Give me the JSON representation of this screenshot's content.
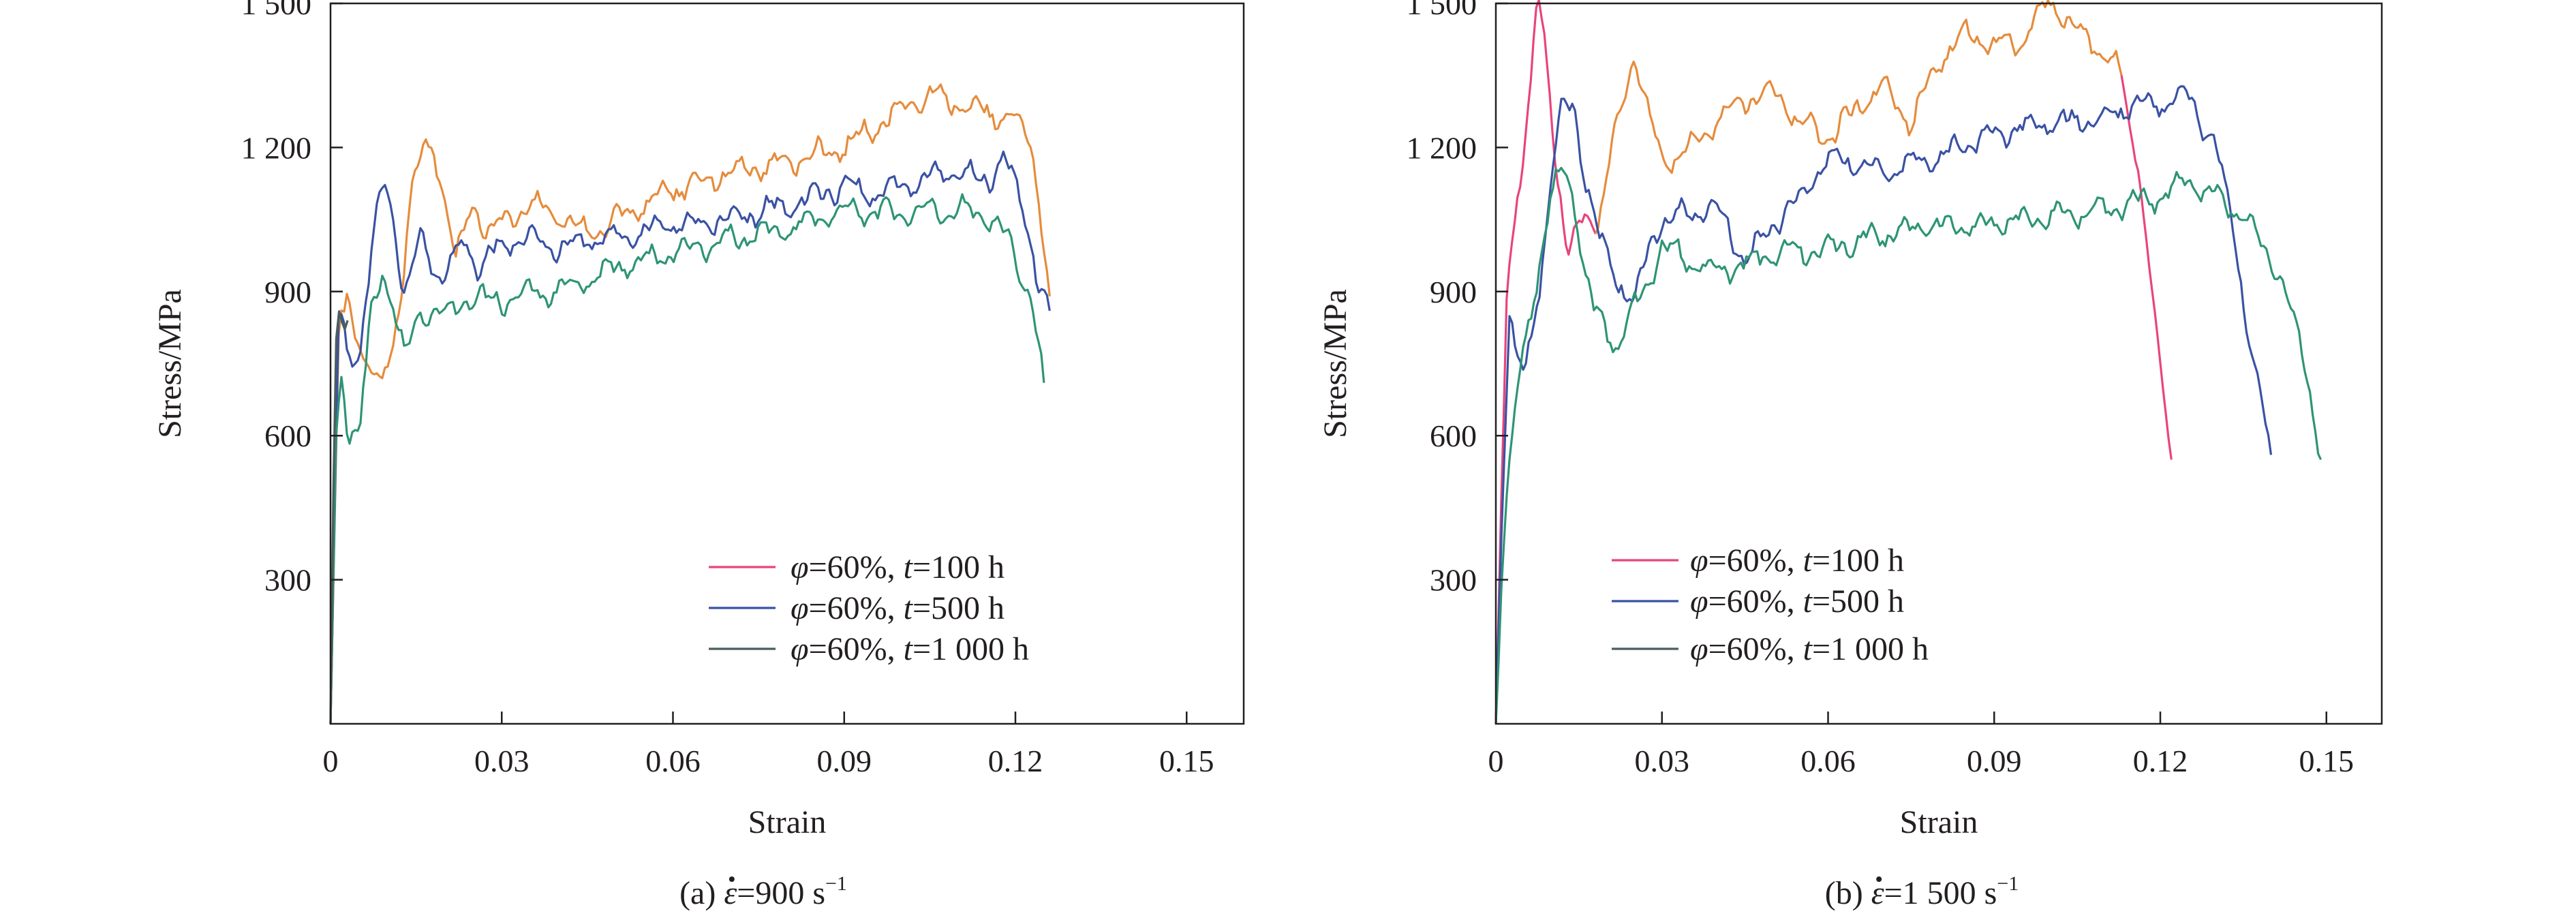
{
  "chart_data": [
    {
      "type": "line",
      "panel": "a",
      "caption": {
        "prefix": "(a) ",
        "symbol": "ε",
        "rest": "=900 s",
        "sup": "−1"
      },
      "xlabel": "Strain",
      "ylabel": "Stress/MPa",
      "xlim": [
        0,
        0.16
      ],
      "ylim": [
        0,
        1500
      ],
      "xticks": [
        {
          "v": 0,
          "label": "0"
        },
        {
          "v": 0.03,
          "label": "0.03"
        },
        {
          "v": 0.06,
          "label": "0.06"
        },
        {
          "v": 0.09,
          "label": "0.09"
        },
        {
          "v": 0.12,
          "label": "0.12"
        },
        {
          "v": 0.15,
          "label": "0.15"
        }
      ],
      "yticks": [
        {
          "v": 300,
          "label": "300"
        },
        {
          "v": 600,
          "label": "600"
        },
        {
          "v": 900,
          "label": "900"
        },
        {
          "v": 1200,
          "label": "1 200"
        },
        {
          "v": 1500,
          "label": "1 500"
        }
      ],
      "grid": false,
      "legend_position": "lower-right",
      "legend": [
        {
          "phi": "φ",
          "mid": "=60%, ",
          "t": "t",
          "tail": "=100 h",
          "color": "#e8457a"
        },
        {
          "phi": "φ",
          "mid": "=60%, ",
          "t": "t",
          "tail": "=500 h",
          "color": "#3a52a4"
        },
        {
          "phi": "φ",
          "mid": "=60%, ",
          "t": "t",
          "tail": "=1 000 h",
          "color": "#4a5e5e"
        }
      ],
      "series": [
        {
          "color": "#e58c3d",
          "ripple": 1,
          "x": [
            0,
            0.0015,
            0.003,
            0.006,
            0.009,
            0.012,
            0.014,
            0.016,
            0.018,
            0.02,
            0.022,
            0.025,
            0.027,
            0.03,
            0.035,
            0.04,
            0.045,
            0.05,
            0.06,
            0.07,
            0.08,
            0.09,
            0.095,
            0.1,
            0.105,
            0.11,
            0.115,
            0.12,
            0.123,
            0.125,
            0.126
          ],
          "y": [
            0,
            830,
            880,
            760,
            690,
            860,
            1100,
            1190,
            1200,
            1100,
            960,
            1090,
            1030,
            1040,
            1080,
            1060,
            1020,
            1050,
            1110,
            1150,
            1170,
            1200,
            1240,
            1280,
            1310,
            1290,
            1270,
            1260,
            1200,
            1000,
            890
          ]
        },
        {
          "color": "#3a52a4",
          "ripple": 1,
          "x": [
            0,
            0.0015,
            0.003,
            0.005,
            0.008,
            0.0095,
            0.011,
            0.013,
            0.016,
            0.018,
            0.02,
            0.023,
            0.026,
            0.03,
            0.035,
            0.04,
            0.045,
            0.05,
            0.06,
            0.07,
            0.08,
            0.09,
            0.095,
            0.1,
            0.105,
            0.11,
            0.115,
            0.118,
            0.122,
            0.124,
            0.126
          ],
          "y": [
            0,
            880,
            780,
            760,
            1050,
            1140,
            1050,
            880,
            1020,
            960,
            920,
            1010,
            950,
            1000,
            1010,
            990,
            1010,
            1010,
            1040,
            1050,
            1080,
            1120,
            1100,
            1120,
            1140,
            1150,
            1130,
            1180,
            1050,
            920,
            860
          ]
        },
        {
          "color": "#2e9475",
          "ripple": 1,
          "x": [
            0,
            0.001,
            0.002,
            0.003,
            0.005,
            0.007,
            0.009,
            0.011,
            0.013,
            0.016,
            0.02,
            0.025,
            0.03,
            0.035,
            0.04,
            0.05,
            0.06,
            0.07,
            0.08,
            0.09,
            0.1,
            0.11,
            0.115,
            0.118,
            0.121,
            0.123,
            0.125
          ],
          "y": [
            0,
            620,
            740,
            620,
            600,
            840,
            940,
            880,
            760,
            860,
            850,
            890,
            880,
            900,
            900,
            950,
            980,
            1010,
            1030,
            1070,
            1060,
            1070,
            1060,
            1020,
            940,
            880,
            710
          ]
        },
        {
          "color": "#4a5e5e",
          "ripple": 1,
          "x": [
            0,
            0.0008,
            0.0015,
            0.003
          ],
          "y": [
            0,
            780,
            880,
            840
          ]
        }
      ]
    },
    {
      "type": "line",
      "panel": "b",
      "caption": {
        "prefix": "(b) ",
        "symbol": "ε",
        "rest": "=1 500 s",
        "sup": "−1"
      },
      "xlabel": "Strain",
      "ylabel": "Stress/MPa",
      "xlim": [
        0,
        0.16
      ],
      "ylim": [
        0,
        1500
      ],
      "xticks": [
        {
          "v": 0,
          "label": "0"
        },
        {
          "v": 0.03,
          "label": "0.03"
        },
        {
          "v": 0.06,
          "label": "0.06"
        },
        {
          "v": 0.09,
          "label": "0.09"
        },
        {
          "v": 0.12,
          "label": "0.12"
        },
        {
          "v": 0.15,
          "label": "0.15"
        }
      ],
      "yticks": [
        {
          "v": 300,
          "label": "300"
        },
        {
          "v": 600,
          "label": "600"
        },
        {
          "v": 900,
          "label": "900"
        },
        {
          "v": 1200,
          "label": "1 200"
        },
        {
          "v": 1500,
          "label": "1 500"
        }
      ],
      "grid": false,
      "legend_position": "lower-left",
      "legend": [
        {
          "phi": "φ",
          "mid": "=60%, ",
          "t": "t",
          "tail": "=100 h",
          "color": "#e8457a"
        },
        {
          "phi": "φ",
          "mid": "=60%, ",
          "t": "t",
          "tail": "=500 h",
          "color": "#3a52a4"
        },
        {
          "phi": "φ",
          "mid": "=60%, ",
          "t": "t",
          "tail": "=1 000 h",
          "color": "#4a5e5e"
        }
      ],
      "series": [
        {
          "color": "#e8457a",
          "ripple": 1,
          "x": [
            0,
            0.002,
            0.004,
            0.006,
            0.0075,
            0.009,
            0.011,
            0.013,
            0.016,
            0.018
          ],
          "y": [
            0,
            900,
            1100,
            1300,
            1520,
            1380,
            1150,
            1000,
            1050,
            1020
          ]
        },
        {
          "color": "#e58c3d",
          "ripple": 1,
          "x": [
            0.018,
            0.021,
            0.023,
            0.025,
            0.028,
            0.03,
            0.035,
            0.04,
            0.045,
            0.05,
            0.055,
            0.06,
            0.065,
            0.07,
            0.075,
            0.08,
            0.085,
            0.09,
            0.095,
            0.1,
            0.105,
            0.11,
            0.113
          ],
          "y": [
            1020,
            1200,
            1300,
            1400,
            1250,
            1160,
            1200,
            1260,
            1300,
            1320,
            1250,
            1220,
            1280,
            1330,
            1250,
            1380,
            1440,
            1410,
            1420,
            1510,
            1440,
            1400,
            1350
          ]
        },
        {
          "color": "#e8457a",
          "ripple": 0.4,
          "x": [
            0.113,
            0.116,
            0.119,
            0.122
          ],
          "y": [
            1350,
            1150,
            850,
            550
          ]
        },
        {
          "color": "#3a52a4",
          "ripple": 1,
          "x": [
            0,
            0.001,
            0.0025,
            0.0035,
            0.005,
            0.0065,
            0.008,
            0.01,
            0.012,
            0.014,
            0.016,
            0.019,
            0.022,
            0.025,
            0.028,
            0.03,
            0.035,
            0.04,
            0.045,
            0.05,
            0.055,
            0.06,
            0.07,
            0.08,
            0.09,
            0.1,
            0.11,
            0.115,
            0.12,
            0.125,
            0.13,
            0.133,
            0.136,
            0.14
          ],
          "y": [
            0,
            400,
            880,
            780,
            720,
            800,
            920,
            1150,
            1290,
            1280,
            1150,
            1000,
            920,
            880,
            1000,
            1050,
            1060,
            1080,
            960,
            1040,
            1100,
            1180,
            1150,
            1180,
            1230,
            1250,
            1260,
            1290,
            1290,
            1310,
            1200,
            1050,
            800,
            560
          ]
        },
        {
          "color": "#2e9475",
          "ripple": 1,
          "x": [
            0,
            0.001,
            0.002,
            0.004,
            0.007,
            0.01,
            0.012,
            0.014,
            0.016,
            0.018,
            0.022,
            0.024,
            0.027,
            0.03,
            0.035,
            0.04,
            0.05,
            0.06,
            0.07,
            0.08,
            0.09,
            0.1,
            0.11,
            0.12,
            0.125,
            0.13,
            0.135,
            0.138,
            0.141,
            0.144,
            0.147,
            0.149
          ],
          "y": [
            0,
            300,
            500,
            700,
            900,
            1100,
            1150,
            1100,
            950,
            850,
            780,
            850,
            900,
            1000,
            960,
            940,
            980,
            990,
            1020,
            1040,
            1040,
            1060,
            1070,
            1100,
            1130,
            1100,
            1060,
            1000,
            950,
            850,
            700,
            550
          ]
        }
      ]
    }
  ]
}
